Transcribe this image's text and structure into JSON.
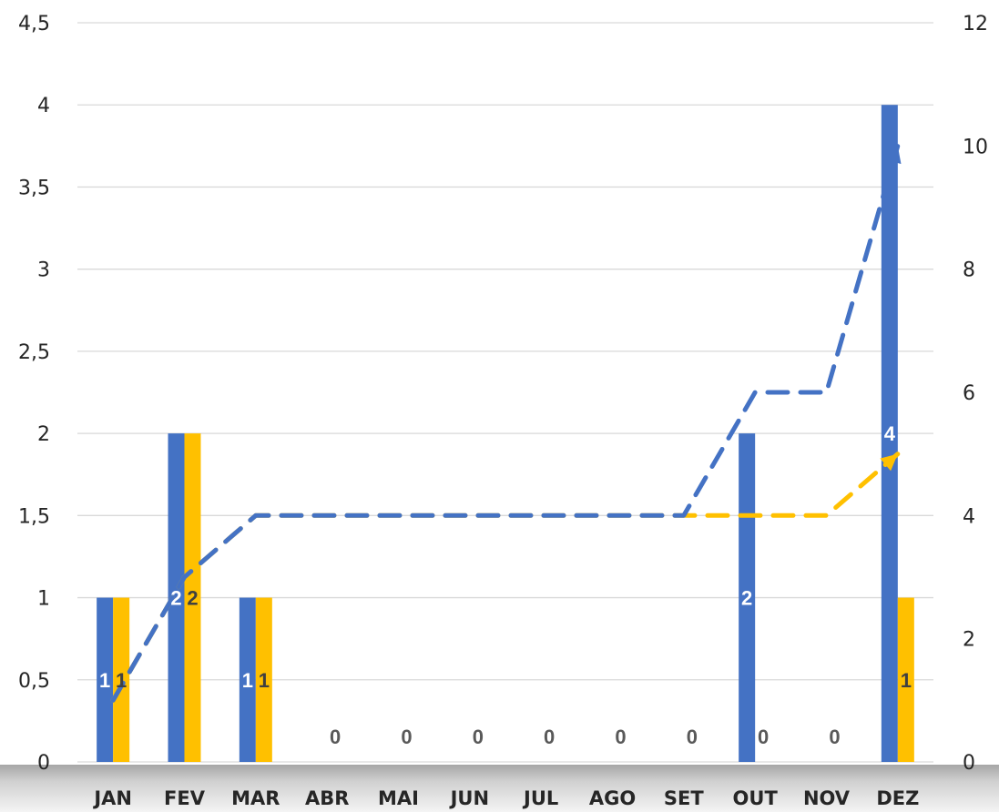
{
  "chart_data": {
    "type": "bar",
    "categories": [
      "JAN",
      "FEV",
      "MAR",
      "ABR",
      "MAI",
      "JUN",
      "JUL",
      "AGO",
      "SET",
      "OUT",
      "NOV",
      "DEZ"
    ],
    "series": [
      {
        "kind": "bar",
        "axis": "left",
        "color": "#4472C4",
        "values": [
          1,
          2,
          1,
          0,
          0,
          0,
          0,
          0,
          0,
          2,
          0,
          4
        ]
      },
      {
        "kind": "bar",
        "axis": "left",
        "color": "#FFC000",
        "values": [
          1,
          2,
          1,
          0,
          0,
          0,
          0,
          0,
          0,
          0,
          0,
          1
        ]
      },
      {
        "kind": "line",
        "style": "dashed",
        "axis": "right",
        "color": "#4472C4",
        "values": [
          1,
          3,
          4,
          4,
          4,
          4,
          4,
          4,
          4,
          6,
          6,
          10
        ]
      },
      {
        "kind": "line",
        "style": "dashed",
        "axis": "right",
        "color": "#FFC000",
        "values": [
          1,
          3,
          4,
          4,
          4,
          4,
          4,
          4,
          4,
          4,
          4,
          5
        ]
      }
    ],
    "y_left": {
      "min": 0,
      "max": 4.5,
      "ticks": [
        "0",
        "0,5",
        "1",
        "1,5",
        "2",
        "2,5",
        "3",
        "3,5",
        "4",
        "4,5"
      ]
    },
    "y_right": {
      "min": 0,
      "max": 12,
      "ticks": [
        "0",
        "2",
        "4",
        "6",
        "8",
        "10",
        "12"
      ]
    },
    "data_labels": [
      {
        "category": 0,
        "series": 0,
        "text": "1"
      },
      {
        "category": 0,
        "series": 1,
        "text": "1"
      },
      {
        "category": 1,
        "series": 0,
        "text": "2"
      },
      {
        "category": 1,
        "series": 1,
        "text": "2"
      },
      {
        "category": 2,
        "series": 0,
        "text": "1"
      },
      {
        "category": 2,
        "series": 1,
        "text": "1"
      },
      {
        "category": 3,
        "series": 1,
        "text": "0"
      },
      {
        "category": 4,
        "series": 1,
        "text": "0"
      },
      {
        "category": 5,
        "series": 1,
        "text": "0"
      },
      {
        "category": 6,
        "series": 1,
        "text": "0"
      },
      {
        "category": 7,
        "series": 1,
        "text": "0"
      },
      {
        "category": 8,
        "series": 1,
        "text": "0"
      },
      {
        "category": 9,
        "series": 0,
        "text": "2"
      },
      {
        "category": 9,
        "series": 1,
        "text": "0"
      },
      {
        "category": 10,
        "series": 1,
        "text": "0"
      },
      {
        "category": 11,
        "series": 0,
        "text": "4"
      },
      {
        "category": 11,
        "series": 1,
        "text": "1"
      }
    ],
    "grid": true,
    "legend": "none",
    "title": "",
    "xlabel": "",
    "ylabel": ""
  }
}
